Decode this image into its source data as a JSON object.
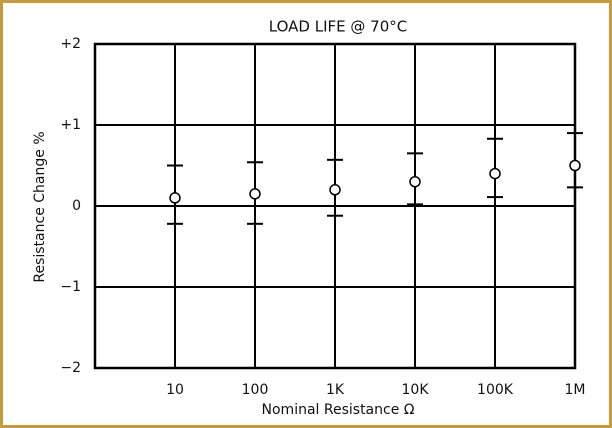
{
  "chart_data": {
    "type": "errorbar",
    "title": "LOAD LIFE @ 70°C",
    "x_label": "Nominal Resistance Ω",
    "y_label": "Resistance Change %",
    "categories": [
      "10",
      "100",
      "1K",
      "10K",
      "100K",
      "1M"
    ],
    "values": [
      0.1,
      0.15,
      0.2,
      0.3,
      0.4,
      0.5
    ],
    "upper": [
      0.5,
      0.54,
      0.57,
      0.65,
      0.83,
      0.9
    ],
    "lower": [
      -0.22,
      -0.22,
      -0.12,
      0.02,
      0.11,
      0.23
    ],
    "color": "#000000",
    "ylim": [
      -2,
      2
    ],
    "yticks": [
      {
        "value": 2,
        "label": "+2"
      },
      {
        "value": 1,
        "label": "+1"
      },
      0,
      {
        "value": -1,
        "label": "−1"
      },
      {
        "value": -2,
        "label": "−2"
      }
    ],
    "grid": true
  }
}
